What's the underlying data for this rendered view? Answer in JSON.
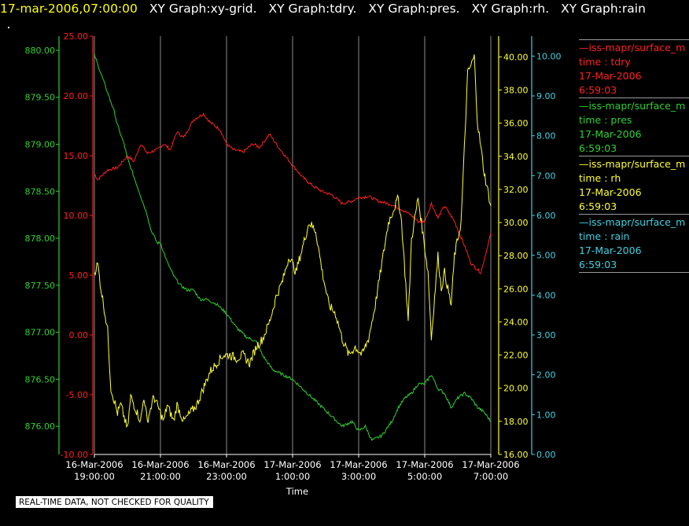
{
  "header": {
    "timestamp": "17-mar-2006,07:00:00",
    "titles": [
      "XY Graph:xy-grid.",
      "XY Graph:tdry.",
      "XY Graph:pres.",
      "XY Graph:rh.",
      "XY Graph:rain"
    ]
  },
  "legend": [
    {
      "title": "—iss-mapr/surface_m",
      "var": "time : tdry",
      "date": "17-Mar-2006",
      "time": "6:59:03",
      "color": "#ff2020"
    },
    {
      "title": "—iss-mapr/surface_m",
      "var": "time : pres",
      "date": "17-Mar-2006",
      "time": "6:59:03",
      "color": "#30d030"
    },
    {
      "title": "—iss-mapr/surface_m",
      "var": "time : rh",
      "date": "17-Mar-2006",
      "time": "6:59:03",
      "color": "#ffff30"
    },
    {
      "title": "—iss-mapr/surface_m",
      "var": "time : rain",
      "date": "17-Mar-2006",
      "time": "6:59:03",
      "color": "#40d0e0"
    }
  ],
  "quality_note": "REAL-TIME DATA, NOT CHECKED FOR QUALITY",
  "chart_data": {
    "type": "line",
    "xlabel": "Time",
    "x_range_hours": [
      -5,
      7
    ],
    "x_ticks": [
      {
        "hour": -5,
        "date": "16-Mar-2006",
        "time": "19:00:00"
      },
      {
        "hour": -3,
        "date": "16-Mar-2006",
        "time": "21:00:00"
      },
      {
        "hour": -1,
        "date": "16-Mar-2006",
        "time": "23:00:00"
      },
      {
        "hour": 1,
        "date": "17-Mar-2006",
        "time": "1:00:00"
      },
      {
        "hour": 3,
        "date": "17-Mar-2006",
        "time": "3:00:00"
      },
      {
        "hour": 5,
        "date": "17-Mar-2006",
        "time": "5:00:00"
      },
      {
        "hour": 7,
        "date": "17-Mar-2006",
        "time": "7:00:00"
      }
    ],
    "grid": "vertical lines at x ticks",
    "axes": {
      "pres": {
        "color": "#30d030",
        "ylim": [
          875.7,
          880.15
        ],
        "ticks": [
          "876.00",
          "876.50",
          "877.00",
          "877.50",
          "878.00",
          "878.50",
          "879.00",
          "879.50",
          "880.00"
        ]
      },
      "tdry": {
        "color": "#ff2020",
        "ylim": [
          -10,
          25
        ],
        "ticks": [
          "-10.00",
          "-5.00",
          "0.00",
          "5.00",
          "10.00",
          "15.00",
          "20.00",
          "25.00"
        ]
      },
      "rh": {
        "color": "#ffff30",
        "ylim": [
          16,
          41.25
        ],
        "ticks": [
          "16.00",
          "18.00",
          "20.00",
          "22.00",
          "24.00",
          "26.00",
          "28.00",
          "30.00",
          "32.00",
          "34.00",
          "36.00",
          "38.00",
          "40.00"
        ]
      },
      "rain": {
        "color": "#40d0e0",
        "ylim": [
          0,
          10.5
        ],
        "ticks": [
          "0.00",
          "1.00",
          "2.00",
          "3.00",
          "4.00",
          "5.00",
          "6.00",
          "7.00",
          "8.00",
          "9.00",
          "10.00"
        ]
      }
    },
    "series": [
      {
        "name": "time : tdry",
        "axis": "tdry",
        "color": "#ff2020",
        "x": [
          -5,
          -4.9,
          -4.6,
          -4.3,
          -4,
          -3.8,
          -3.6,
          -3.4,
          -3.1,
          -2.9,
          -2.7,
          -2.5,
          -2.3,
          -2,
          -1.7,
          -1.5,
          -1.2,
          -1,
          -0.8,
          -0.5,
          -0.2,
          0,
          0.3,
          0.6,
          1,
          1.3,
          1.6,
          1.9,
          2.2,
          2.5,
          2.8,
          3,
          3.3,
          3.6,
          4,
          4.3,
          4.6,
          4.8,
          5,
          5.2,
          5.4,
          5.6,
          5.9,
          6.2,
          6.4,
          6.7,
          7
        ],
        "y": [
          13.5,
          13,
          13.8,
          14,
          15,
          14.5,
          16,
          15.2,
          15.5,
          16,
          15.5,
          17,
          16.5,
          18,
          18.5,
          17.8,
          17.2,
          16,
          15.5,
          15.3,
          16,
          15.7,
          16.8,
          15.6,
          14.2,
          13.2,
          12.5,
          12,
          11.7,
          11,
          11.2,
          11.5,
          11.6,
          11.2,
          10.9,
          10.5,
          10,
          9.5,
          9.5,
          11,
          9.8,
          10.8,
          9.5,
          7.5,
          6,
          5.2,
          8.5
        ]
      },
      {
        "name": "time : pres",
        "axis": "pres",
        "color": "#30d030",
        "x": [
          -5,
          -4.8,
          -4.6,
          -4.4,
          -4.3,
          -4.1,
          -4,
          -3.8,
          -3.6,
          -3.4,
          -3.3,
          -3.1,
          -3,
          -2.8,
          -2.6,
          -2.4,
          -2.2,
          -2,
          -1.8,
          -1.6,
          -1.3,
          -1,
          -0.7,
          -0.4,
          -0.1,
          0.1,
          0.4,
          0.7,
          1,
          1.3,
          1.6,
          1.9,
          2.2,
          2.5,
          2.8,
          3,
          3.2,
          3.4,
          3.7,
          4,
          4.2,
          4.4,
          4.6,
          4.8,
          5,
          5.2,
          5.4,
          5.6,
          5.8,
          6,
          6.2,
          6.4,
          6.6,
          6.8,
          7
        ],
        "y": [
          879.95,
          879.75,
          879.55,
          879.35,
          879.2,
          879,
          878.85,
          878.65,
          878.45,
          878.25,
          878.1,
          877.95,
          877.95,
          877.75,
          877.6,
          877.5,
          877.45,
          877.45,
          877.35,
          877.35,
          877.3,
          877.2,
          877.05,
          876.95,
          876.9,
          876.75,
          876.6,
          876.55,
          876.5,
          876.4,
          876.3,
          876.2,
          876.1,
          876,
          876.05,
          875.95,
          876,
          875.85,
          875.9,
          876.05,
          876.2,
          876.3,
          876.35,
          876.45,
          876.45,
          876.55,
          876.4,
          876.35,
          876.2,
          876.3,
          876.35,
          876.3,
          876.2,
          876.15,
          876.05
        ]
      },
      {
        "name": "time : rh",
        "axis": "rh",
        "color": "#ffff30",
        "x": [
          -5,
          -4.9,
          -4.8,
          -4.6,
          -4.5,
          -4.3,
          -4.2,
          -4,
          -3.9,
          -3.8,
          -3.6,
          -3.5,
          -3.4,
          -3.2,
          -3.1,
          -2.9,
          -2.8,
          -2.6,
          -2.5,
          -2.3,
          -2.1,
          -1.9,
          -1.7,
          -1.5,
          -1.3,
          -1.1,
          -0.9,
          -0.7,
          -0.5,
          -0.3,
          -0.1,
          0.1,
          0.3,
          0.5,
          0.7,
          0.9,
          1.1,
          1.3,
          1.5,
          1.7,
          1.9,
          2.1,
          2.3,
          2.5,
          2.7,
          2.9,
          3.1,
          3.3,
          3.5,
          3.7,
          3.9,
          4.1,
          4.2,
          4.3,
          4.5,
          4.6,
          4.8,
          4.9,
          5.1,
          5.2,
          5.4,
          5.5,
          5.6,
          5.8,
          5.9,
          6.1,
          6.3,
          6.5,
          6.6,
          6.8,
          6.9,
          7
        ],
        "y": [
          27,
          27.5,
          26,
          23.5,
          20,
          18.5,
          19,
          17.5,
          19.5,
          19,
          18,
          19.5,
          18,
          19.5,
          19,
          18,
          19,
          18,
          19,
          18,
          18.5,
          19,
          20,
          21,
          21.5,
          22,
          22,
          21.8,
          22,
          21.5,
          22.5,
          23,
          24,
          25.5,
          26.5,
          28,
          27,
          28.5,
          30,
          29.5,
          27,
          25,
          24.5,
          23,
          22,
          22.5,
          22,
          23,
          25,
          27.5,
          30,
          31,
          31.5,
          30,
          24,
          29,
          31.5,
          30,
          27,
          23,
          28,
          26,
          27,
          25,
          28,
          30,
          39,
          40,
          36,
          33,
          32,
          31
        ]
      },
      {
        "name": "time : rain",
        "axis": "rain",
        "color": "#40d0e0",
        "x": [
          -5,
          7
        ],
        "y": [
          0,
          0
        ]
      }
    ]
  }
}
